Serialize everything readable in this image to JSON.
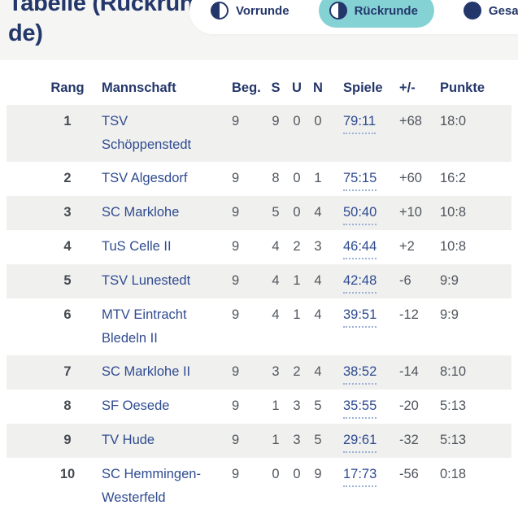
{
  "colors": {
    "accent_teal": "#85D2D5",
    "navy": "#24376B",
    "stripe": "#F0F0EE",
    "top_background": "#F5F5F3"
  },
  "header": {
    "title_line1": "Tabelle (Rückrun-",
    "title_line2": "de)",
    "tabs": [
      {
        "label": "Vorrunde",
        "icon": "half-left-circle-icon",
        "active": false
      },
      {
        "label": "Rückrunde",
        "icon": "half-right-circle-icon",
        "active": true
      },
      {
        "label": "Gesamt",
        "icon": "full-circle-icon",
        "active": false
      }
    ]
  },
  "table": {
    "columns": {
      "rank": "Rang",
      "team": "Mannschaft",
      "beg": "Beg.",
      "s": "S",
      "u": "U",
      "n": "N",
      "spiele": "Spiele",
      "diff": "+/-",
      "punkte": "Punkte"
    },
    "rows": [
      {
        "rank": "1",
        "team": "TSV Schöppenstedt",
        "beg": "9",
        "s": "9",
        "u": "0",
        "n": "0",
        "spiele": "79:11",
        "diff": "+68",
        "punkte": "18:0"
      },
      {
        "rank": "2",
        "team": "TSV Algesdorf",
        "beg": "9",
        "s": "8",
        "u": "0",
        "n": "1",
        "spiele": "75:15",
        "diff": "+60",
        "punkte": "16:2"
      },
      {
        "rank": "3",
        "team": "SC Marklohe",
        "beg": "9",
        "s": "5",
        "u": "0",
        "n": "4",
        "spiele": "50:40",
        "diff": "+10",
        "punkte": "10:8"
      },
      {
        "rank": "4",
        "team": "TuS Celle II",
        "beg": "9",
        "s": "4",
        "u": "2",
        "n": "3",
        "spiele": "46:44",
        "diff": "+2",
        "punkte": "10:8"
      },
      {
        "rank": "5",
        "team": "TSV Lunestedt",
        "beg": "9",
        "s": "4",
        "u": "1",
        "n": "4",
        "spiele": "42:48",
        "diff": "-6",
        "punkte": "9:9"
      },
      {
        "rank": "6",
        "team": "MTV Eintracht Bledeln II",
        "beg": "9",
        "s": "4",
        "u": "1",
        "n": "4",
        "spiele": "39:51",
        "diff": "-12",
        "punkte": "9:9"
      },
      {
        "rank": "7",
        "team": "SC Marklohe II",
        "beg": "9",
        "s": "3",
        "u": "2",
        "n": "4",
        "spiele": "38:52",
        "diff": "-14",
        "punkte": "8:10"
      },
      {
        "rank": "8",
        "team": "SF Oesede",
        "beg": "9",
        "s": "1",
        "u": "3",
        "n": "5",
        "spiele": "35:55",
        "diff": "-20",
        "punkte": "5:13"
      },
      {
        "rank": "9",
        "team": "TV Hude",
        "beg": "9",
        "s": "1",
        "u": "3",
        "n": "5",
        "spiele": "29:61",
        "diff": "-32",
        "punkte": "5:13"
      },
      {
        "rank": "10",
        "team": "SC Hemmingen-Westerfeld",
        "beg": "9",
        "s": "0",
        "u": "0",
        "n": "9",
        "spiele": "17:73",
        "diff": "-56",
        "punkte": "0:18"
      }
    ]
  }
}
